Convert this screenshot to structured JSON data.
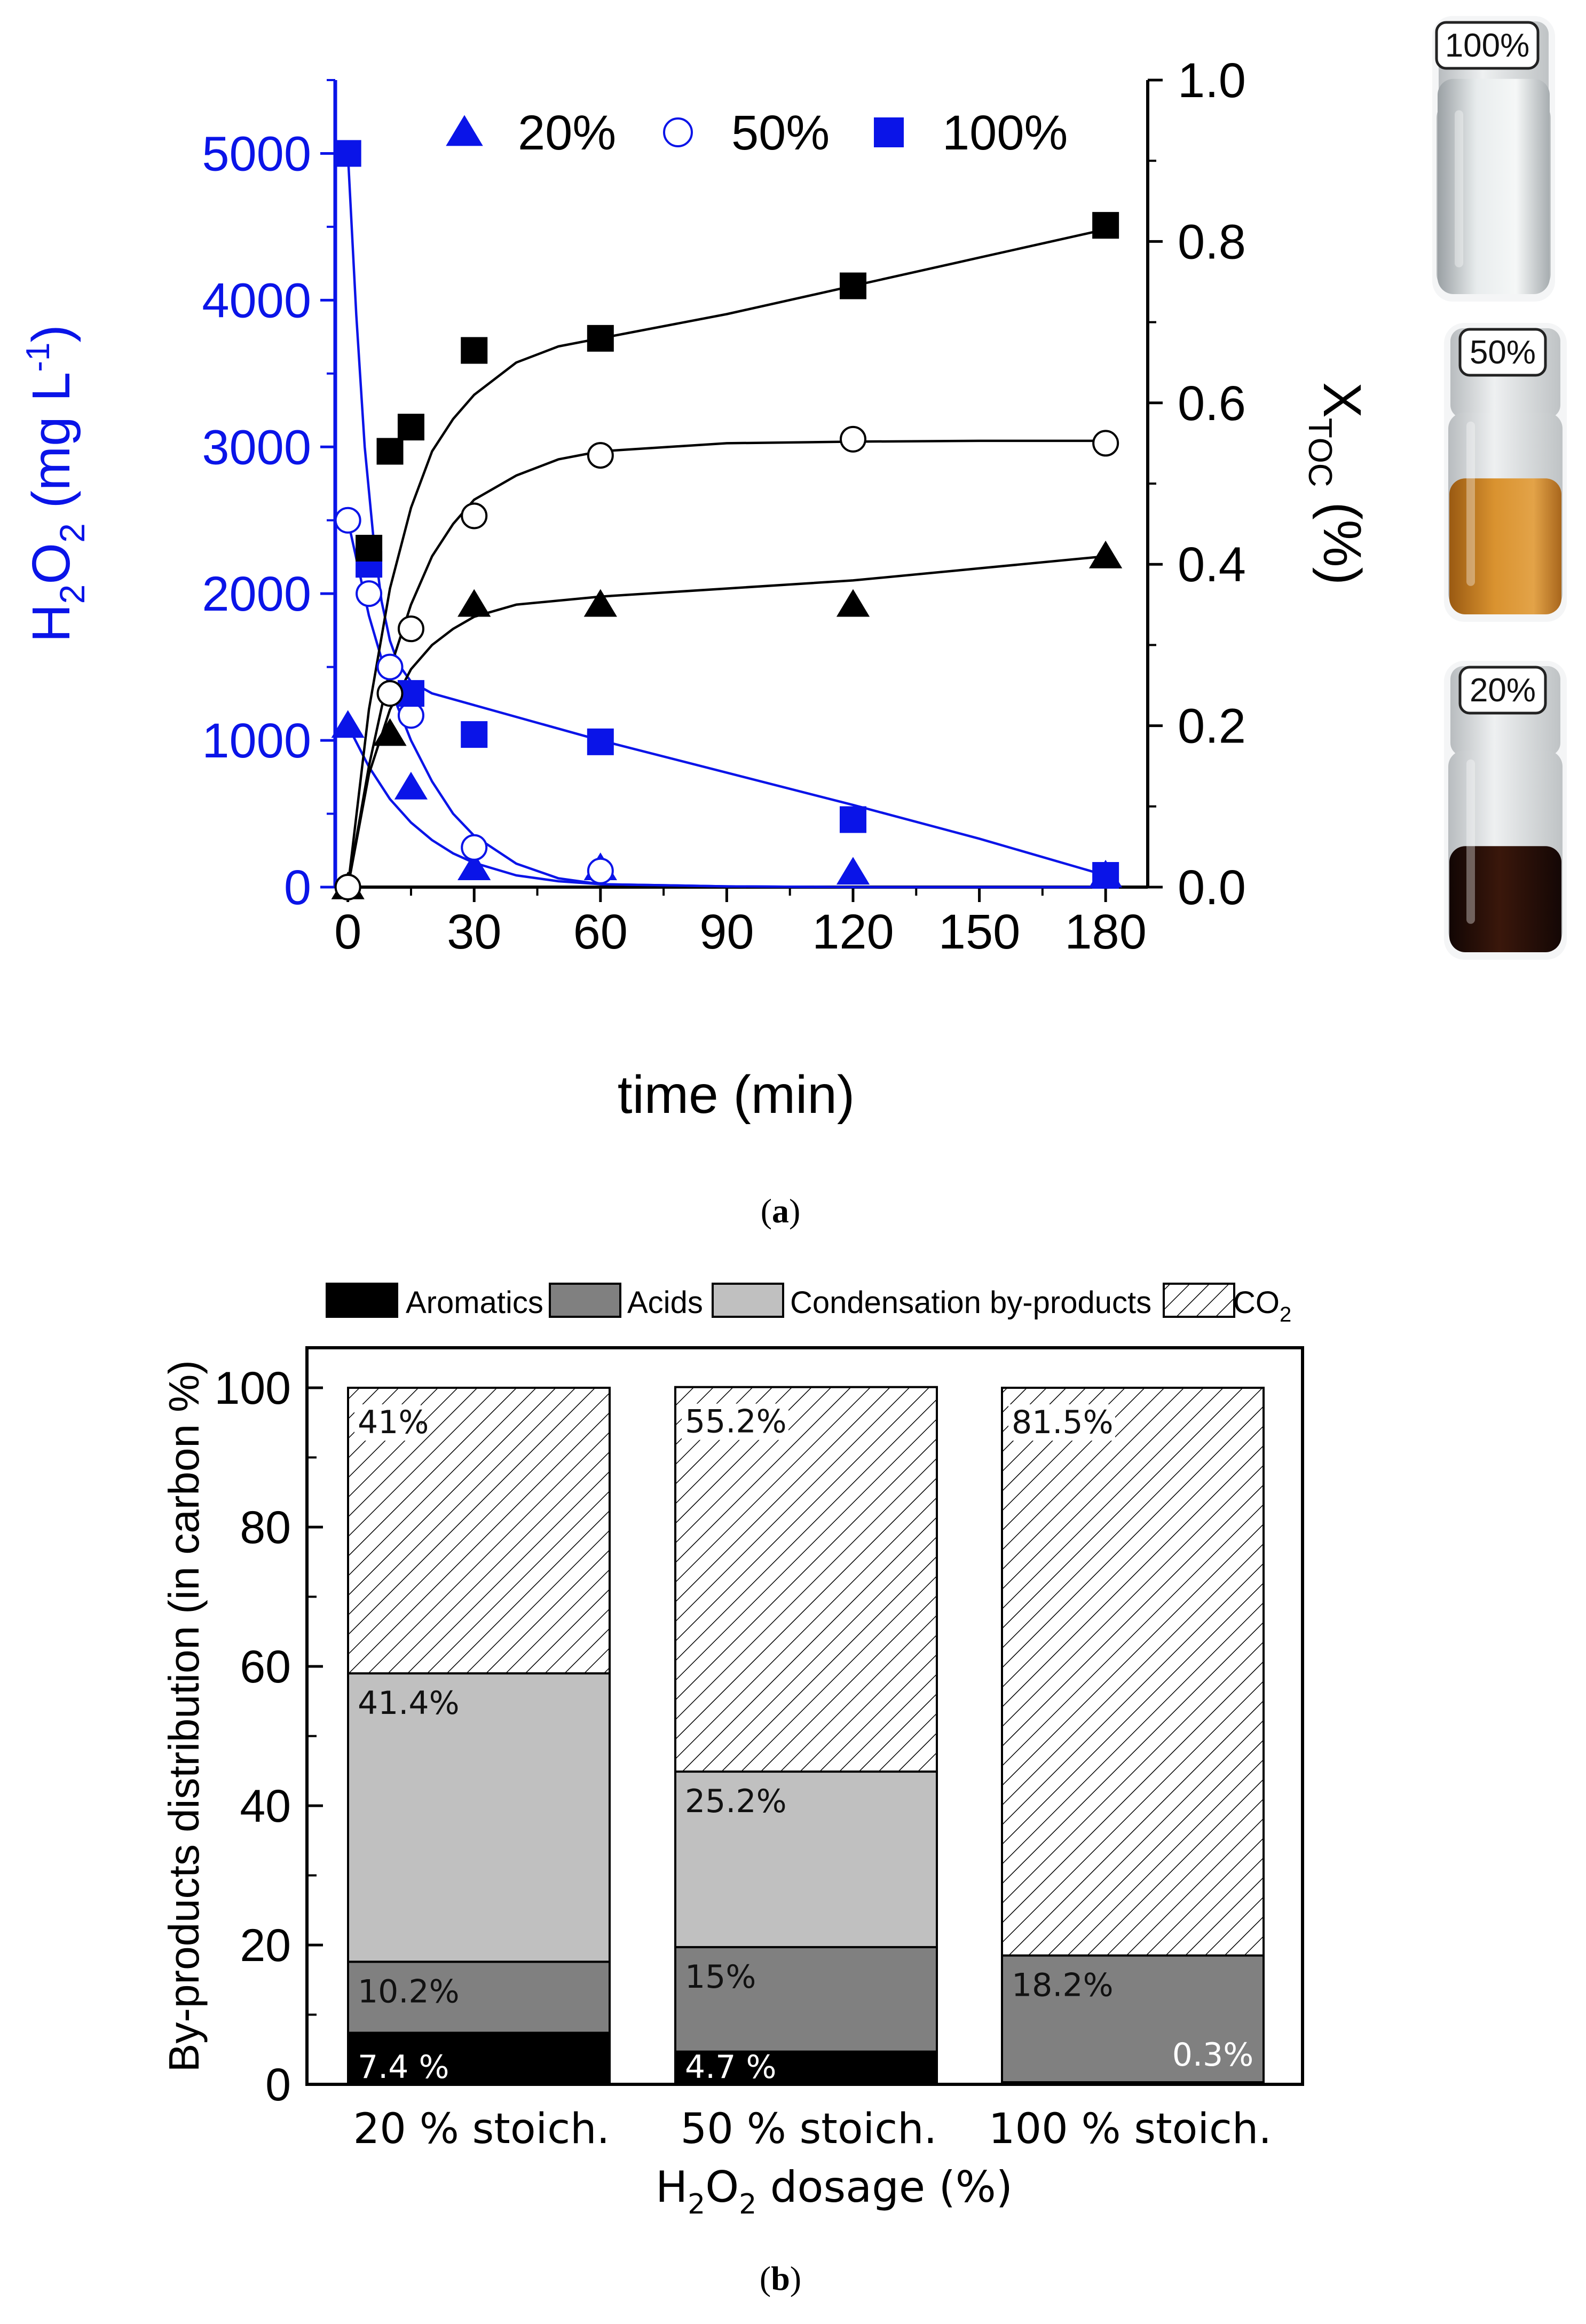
{
  "panel_a": {
    "caption_open": "(",
    "caption_letter": "a",
    "caption_close": ")",
    "legend": [
      {
        "marker": "triangle-filled",
        "label": "20%"
      },
      {
        "marker": "circle-open",
        "label": "50%"
      },
      {
        "marker": "square-filled",
        "label": "100%"
      }
    ],
    "vials": [
      {
        "label": "100%",
        "liquid": "clear"
      },
      {
        "label": "50%",
        "liquid": "amber"
      },
      {
        "label": "20%",
        "liquid": "dark-brown"
      }
    ],
    "colors": {
      "h2o2": "#0a14e8",
      "xtoc": "#000000"
    }
  },
  "panel_b": {
    "caption_open": "(",
    "caption_letter": "b",
    "caption_close": ")",
    "colors": {
      "aromatics": "#000000",
      "acids": "#808080",
      "condensation": "#c0c0c0",
      "co2": "#ffffff"
    }
  },
  "chart_data": [
    {
      "type": "line",
      "title": "",
      "xlabel": "time (min)",
      "ylabel_left": {
        "main": "H",
        "sub1": "2",
        "mid": "O",
        "sub2": "2",
        "tail": " (mg L",
        "sup": "-1",
        "end": ")"
      },
      "ylabel_right": {
        "main": "X",
        "sub": "TOC",
        "tail": " (%)"
      },
      "x_ticks": [
        "0",
        "30",
        "60",
        "90",
        "120",
        "150",
        "180"
      ],
      "y_left_ticks": [
        "0",
        "1000",
        "2000",
        "3000",
        "4000",
        "5000"
      ],
      "y_right_ticks": [
        "0.0",
        "0.2",
        "0.4",
        "0.6",
        "0.8",
        "1.0"
      ],
      "xlim": [
        -3,
        190
      ],
      "ylim_left": [
        0,
        5500
      ],
      "ylim_right": [
        0,
        1.0
      ],
      "series": [
        {
          "name": "20%",
          "axis": "left",
          "quantity": "H2O2",
          "marker": "triangle",
          "fill": "filled",
          "x": [
            0,
            15,
            30,
            60,
            120,
            180
          ],
          "y": [
            1100,
            680,
            130,
            130,
            100,
            80
          ],
          "fit_x": [
            0,
            5,
            10,
            15,
            20,
            25,
            30,
            40,
            50,
            60,
            90,
            120,
            150,
            180
          ],
          "fit_y": [
            1100,
            820,
            600,
            440,
            320,
            230,
            165,
            80,
            40,
            20,
            5,
            0,
            0,
            0
          ]
        },
        {
          "name": "50%",
          "axis": "left",
          "quantity": "H2O2",
          "marker": "circle",
          "fill": "open",
          "x": [
            0,
            5,
            10,
            15,
            30,
            60
          ],
          "y": [
            2500,
            2000,
            1500,
            1170,
            270,
            110
          ],
          "fit_x": [
            0,
            5,
            10,
            15,
            20,
            25,
            30,
            40,
            50,
            60,
            90,
            120,
            150,
            180
          ],
          "fit_y": [
            2500,
            1850,
            1360,
            1000,
            720,
            500,
            350,
            160,
            60,
            20,
            5,
            0,
            0,
            0
          ]
        },
        {
          "name": "100%",
          "axis": "left",
          "quantity": "H2O2",
          "marker": "square",
          "fill": "filled",
          "x": [
            0,
            5,
            15,
            30,
            60,
            120,
            180
          ],
          "y": [
            5000,
            2200,
            1320,
            1040,
            990,
            460,
            80
          ],
          "fit_x": [
            0,
            2,
            4,
            6,
            8,
            10,
            12,
            15,
            20,
            30,
            60,
            90,
            120,
            150,
            180
          ],
          "fit_y": [
            5000,
            3900,
            3000,
            2400,
            1950,
            1680,
            1520,
            1400,
            1320,
            1240,
            1000,
            780,
            560,
            330,
            80
          ]
        },
        {
          "name": "20%",
          "axis": "right",
          "quantity": "XTOC",
          "marker": "triangle",
          "fill": "filled",
          "x": [
            0,
            10,
            30,
            60,
            120,
            180
          ],
          "y": [
            0.0,
            0.19,
            0.35,
            0.35,
            0.35,
            0.41
          ],
          "fit_x": [
            0,
            5,
            10,
            15,
            20,
            25,
            30,
            40,
            50,
            60,
            90,
            120,
            150,
            180
          ],
          "fit_y": [
            0,
            0.14,
            0.22,
            0.27,
            0.3,
            0.32,
            0.335,
            0.35,
            0.355,
            0.36,
            0.37,
            0.38,
            0.395,
            0.41
          ]
        },
        {
          "name": "50%",
          "axis": "right",
          "quantity": "XTOC",
          "marker": "circle",
          "fill": "open",
          "x": [
            0,
            10,
            15,
            30,
            60,
            120,
            180
          ],
          "y": [
            0.0,
            0.24,
            0.32,
            0.46,
            0.535,
            0.555,
            0.55
          ],
          "fit_x": [
            0,
            5,
            10,
            15,
            20,
            25,
            30,
            40,
            50,
            60,
            90,
            120,
            150,
            180
          ],
          "fit_y": [
            0,
            0.15,
            0.27,
            0.35,
            0.41,
            0.45,
            0.48,
            0.51,
            0.53,
            0.54,
            0.55,
            0.552,
            0.553,
            0.553
          ]
        },
        {
          "name": "100%",
          "axis": "right",
          "quantity": "XTOC",
          "marker": "square",
          "fill": "filled",
          "x": [
            5,
            10,
            15,
            30,
            60,
            120,
            180
          ],
          "y": [
            0.42,
            0.54,
            0.57,
            0.665,
            0.68,
            0.745,
            0.82
          ],
          "fit_x": [
            0,
            5,
            10,
            15,
            20,
            25,
            30,
            40,
            50,
            60,
            90,
            120,
            150,
            180
          ],
          "fit_y": [
            0,
            0.22,
            0.37,
            0.47,
            0.54,
            0.58,
            0.61,
            0.65,
            0.67,
            0.68,
            0.71,
            0.745,
            0.78,
            0.815
          ]
        }
      ]
    },
    {
      "type": "bar",
      "stacked": true,
      "title": "",
      "xlabel": {
        "main": "H",
        "sub1": "2",
        "mid": "O",
        "sub2": "2",
        "tail": " dosage (%)"
      },
      "ylabel": "By-products distribution (in carbon %)",
      "ylim": [
        0,
        100
      ],
      "y_ticks": [
        "0",
        "20",
        "40",
        "60",
        "80",
        "100"
      ],
      "categories": [
        "20 % stoich.",
        "50 % stoich.",
        "100 % stoich."
      ],
      "legend": [
        {
          "key": "aromatics",
          "label": "Aromatics"
        },
        {
          "key": "acids",
          "label": "Acids"
        },
        {
          "key": "condensation",
          "label": "Condensation by-products"
        },
        {
          "key": "co2",
          "label": "CO",
          "sub": "2"
        }
      ],
      "series": [
        {
          "name": "Aromatics",
          "values": [
            7.4,
            4.7,
            0.3
          ],
          "labels": [
            "7.4 %",
            "4.7 %",
            "0.3%"
          ]
        },
        {
          "name": "Acids",
          "values": [
            10.2,
            15,
            18.2
          ],
          "labels": [
            "10.2%",
            "15%",
            "18.2%"
          ]
        },
        {
          "name": "Condensation by-products",
          "values": [
            41.4,
            25.2,
            0
          ],
          "labels": [
            "41.4%",
            "25.2%",
            ""
          ]
        },
        {
          "name": "CO2",
          "values": [
            41,
            55.2,
            81.5
          ],
          "labels": [
            "41%",
            "55.2%",
            "81.5%"
          ]
        }
      ]
    }
  ]
}
